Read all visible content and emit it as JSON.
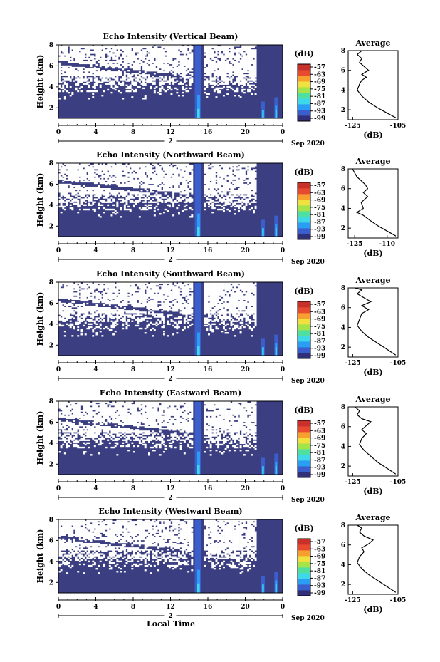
{
  "figure": {
    "xlabel": "Local Time",
    "date_label": "2",
    "month_label": "Sep 2020",
    "colorbar_unit": "(dB)",
    "colorbar_ticks": [
      "-57",
      "-63",
      "-69",
      "-75",
      "-81",
      "-87",
      "-93",
      "-99"
    ],
    "colors": {
      "background_intensity": "#3b3f82",
      "colormap": [
        "#30307a",
        "#3a5fcd",
        "#2a9df4",
        "#3fd8e8",
        "#4fe0a0",
        "#a4e44a",
        "#f0e040",
        "#f7a030",
        "#e84a30",
        "#c8302a"
      ]
    }
  },
  "chart_data": [
    {
      "type": "heatmap",
      "title": "Echo Intensity (Vertical Beam)",
      "ylabel": "Height (km)",
      "xticks": [
        "0",
        "4",
        "8",
        "12",
        "16",
        "20",
        "0"
      ],
      "yticks": [
        "2",
        "4",
        "6",
        "8"
      ],
      "xlim": [
        0,
        24
      ],
      "ylim": [
        1,
        8
      ],
      "avg_panel": {
        "title": "Average",
        "xlabel": "(dB)",
        "xticks": [
          "-125",
          "-105"
        ],
        "yticks": [
          "2",
          "4",
          "6",
          "8"
        ],
        "xlim": [
          -127,
          -105
        ],
        "ylim": [
          1,
          8
        ],
        "profile": [
          [
            -106,
            1.2
          ],
          [
            -110,
            1.7
          ],
          [
            -114,
            2.2
          ],
          [
            -118,
            2.8
          ],
          [
            -121,
            3.4
          ],
          [
            -123,
            4.0
          ],
          [
            -122,
            4.6
          ],
          [
            -121,
            5.0
          ],
          [
            -119,
            5.3
          ],
          [
            -121,
            5.6
          ],
          [
            -118,
            6.0
          ],
          [
            -120,
            6.4
          ],
          [
            -122,
            6.8
          ],
          [
            -121,
            7.2
          ],
          [
            -123,
            7.6
          ],
          [
            -121,
            8.0
          ]
        ]
      }
    },
    {
      "type": "heatmap",
      "title": "Echo Intensity (Northward Beam)",
      "ylabel": "Height (km)",
      "xticks": [
        "0",
        "4",
        "8",
        "12",
        "16",
        "20",
        "0"
      ],
      "yticks": [
        "2",
        "4",
        "6",
        "8"
      ],
      "xlim": [
        0,
        24
      ],
      "ylim": [
        1,
        8
      ],
      "avg_panel": {
        "title": "Average",
        "xlabel": "(dB)",
        "xticks": [
          "-125",
          "-110"
        ],
        "yticks": [
          "2",
          "4",
          "6",
          "8"
        ],
        "xlim": [
          -128,
          -105
        ],
        "ylim": [
          1,
          8
        ],
        "profile": [
          [
            -106,
            1.2
          ],
          [
            -110,
            1.7
          ],
          [
            -114,
            2.2
          ],
          [
            -118,
            2.8
          ],
          [
            -121,
            3.3
          ],
          [
            -124,
            3.6
          ],
          [
            -121,
            4.0
          ],
          [
            -122,
            4.6
          ],
          [
            -119,
            5.2
          ],
          [
            -121,
            5.6
          ],
          [
            -119,
            6.0
          ],
          [
            -120,
            6.4
          ],
          [
            -122,
            6.8
          ],
          [
            -124,
            7.2
          ],
          [
            -125,
            7.6
          ],
          [
            -126,
            8.0
          ]
        ]
      }
    },
    {
      "type": "heatmap",
      "title": "Echo Intensity (Southward Beam)",
      "ylabel": "Height (km)",
      "xticks": [
        "0",
        "4",
        "8",
        "12",
        "16",
        "20",
        "0"
      ],
      "yticks": [
        "2",
        "4",
        "6",
        "8"
      ],
      "xlim": [
        0,
        24
      ],
      "ylim": [
        1,
        8
      ],
      "avg_panel": {
        "title": "Average",
        "xlabel": "(dB)",
        "xticks": [
          "-125",
          "-105"
        ],
        "yticks": [
          "2",
          "4",
          "6",
          "8"
        ],
        "xlim": [
          -127,
          -105
        ],
        "ylim": [
          1,
          8
        ],
        "profile": [
          [
            -106,
            1.2
          ],
          [
            -110,
            1.8
          ],
          [
            -114,
            2.4
          ],
          [
            -118,
            3.0
          ],
          [
            -121,
            3.6
          ],
          [
            -123,
            4.2
          ],
          [
            -122,
            4.8
          ],
          [
            -121,
            5.4
          ],
          [
            -118,
            5.8
          ],
          [
            -121,
            6.2
          ],
          [
            -117,
            6.6
          ],
          [
            -120,
            7.0
          ],
          [
            -123,
            7.4
          ],
          [
            -121,
            7.8
          ],
          [
            -124,
            8.0
          ]
        ]
      }
    },
    {
      "type": "heatmap",
      "title": "Echo Intensity (Eastward Beam)",
      "ylabel": "Height (km)",
      "xticks": [
        "0",
        "4",
        "8",
        "12",
        "16",
        "20",
        "0"
      ],
      "yticks": [
        "2",
        "4",
        "6",
        "8"
      ],
      "xlim": [
        0,
        24
      ],
      "ylim": [
        1,
        8
      ],
      "avg_panel": {
        "title": "Average",
        "xlabel": "(dB)",
        "xticks": [
          "-125",
          "-105"
        ],
        "yticks": [
          "2",
          "4",
          "6",
          "8"
        ],
        "xlim": [
          -127,
          -105
        ],
        "ylim": [
          1,
          8
        ],
        "profile": [
          [
            -106,
            1.2
          ],
          [
            -110,
            1.8
          ],
          [
            -114,
            2.4
          ],
          [
            -117,
            3.0
          ],
          [
            -120,
            3.6
          ],
          [
            -122,
            4.2
          ],
          [
            -121,
            4.8
          ],
          [
            -119,
            5.3
          ],
          [
            -121,
            5.7
          ],
          [
            -119,
            6.1
          ],
          [
            -117,
            6.5
          ],
          [
            -121,
            6.8
          ],
          [
            -123,
            7.2
          ],
          [
            -122,
            7.6
          ],
          [
            -124,
            8.0
          ]
        ]
      }
    },
    {
      "type": "heatmap",
      "title": "Echo Intensity (Westward Beam)",
      "ylabel": "Height (km)",
      "xticks": [
        "0",
        "4",
        "8",
        "12",
        "16",
        "20",
        "0"
      ],
      "yticks": [
        "2",
        "4",
        "6",
        "8"
      ],
      "xlim": [
        0,
        24
      ],
      "ylim": [
        1,
        8
      ],
      "avg_panel": {
        "title": "Average",
        "xlabel": "(dB)",
        "xticks": [
          "-125",
          "-105"
        ],
        "yticks": [
          "2",
          "4",
          "6",
          "8"
        ],
        "xlim": [
          -127,
          -105
        ],
        "ylim": [
          1,
          8
        ],
        "profile": [
          [
            -106,
            1.2
          ],
          [
            -110,
            1.8
          ],
          [
            -114,
            2.4
          ],
          [
            -118,
            3.0
          ],
          [
            -121,
            3.6
          ],
          [
            -123,
            4.2
          ],
          [
            -122,
            4.8
          ],
          [
            -120,
            5.3
          ],
          [
            -121,
            5.7
          ],
          [
            -118,
            6.1
          ],
          [
            -116,
            6.5
          ],
          [
            -120,
            6.9
          ],
          [
            -122,
            7.3
          ],
          [
            -121,
            7.7
          ],
          [
            -123,
            8.0
          ]
        ]
      }
    }
  ]
}
